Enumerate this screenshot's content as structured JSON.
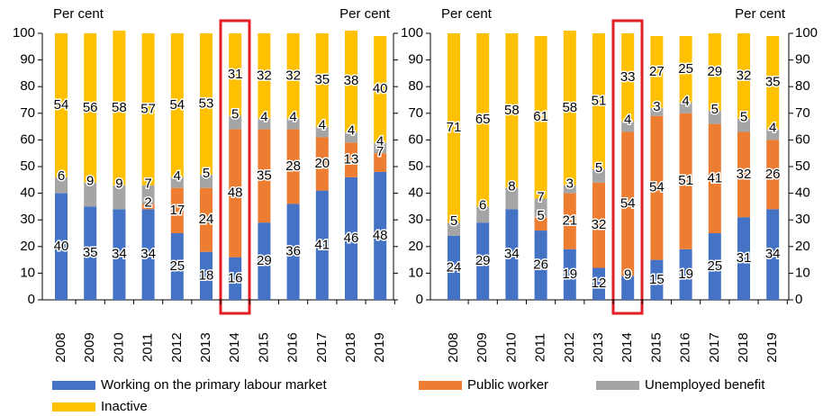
{
  "chart_data": [
    {
      "type": "stacked_bar",
      "y_label": "Per cent",
      "y2_label": "Per cent",
      "categories": [
        "2008",
        "2009",
        "2010",
        "2011",
        "2012",
        "2013",
        "2014",
        "2015",
        "2016",
        "2017",
        "2018",
        "2019"
      ],
      "ylim": [
        0,
        100
      ],
      "yticks": [
        0,
        10,
        20,
        30,
        40,
        50,
        60,
        70,
        80,
        90,
        100
      ],
      "series": [
        {
          "name": "Working on the primary labour market",
          "color": "#4472c4",
          "values": [
            40,
            35,
            34,
            34,
            25,
            18,
            16,
            29,
            36,
            41,
            46,
            48
          ]
        },
        {
          "name": "Public worker",
          "color": "#ed7d31",
          "values": [
            null,
            null,
            null,
            2,
            17,
            24,
            48,
            35,
            28,
            20,
            13,
            7
          ]
        },
        {
          "name": "Unemployed benefit",
          "color": "#a5a5a5",
          "values": [
            6,
            9,
            9,
            7,
            4,
            5,
            5,
            4,
            4,
            4,
            4,
            4
          ]
        },
        {
          "name": "Inactive",
          "color": "#ffc000",
          "values": [
            54,
            56,
            58,
            57,
            54,
            53,
            31,
            32,
            32,
            35,
            38,
            40
          ]
        }
      ]
    },
    {
      "type": "stacked_bar",
      "y_label": "Per cent",
      "y2_label": "Per cent",
      "categories": [
        "2008",
        "2009",
        "2010",
        "2011",
        "2012",
        "2013",
        "2014",
        "2015",
        "2016",
        "2017",
        "2018",
        "2019"
      ],
      "ylim": [
        0,
        100
      ],
      "yticks": [
        0,
        10,
        20,
        30,
        40,
        50,
        60,
        70,
        80,
        90,
        100
      ],
      "series": [
        {
          "values": [
            24,
            29,
            34,
            26,
            19,
            12,
            9,
            15,
            19,
            25,
            31,
            34
          ]
        },
        {
          "values": [
            null,
            null,
            null,
            5,
            21,
            32,
            54,
            54,
            51,
            41,
            32,
            26
          ]
        },
        {
          "values": [
            5,
            6,
            8,
            7,
            3,
            5,
            4,
            3,
            4,
            5,
            5,
            4
          ]
        },
        {
          "values": [
            71,
            65,
            58,
            61,
            58,
            51,
            33,
            27,
            25,
            29,
            32,
            35
          ]
        }
      ]
    }
  ]
}
